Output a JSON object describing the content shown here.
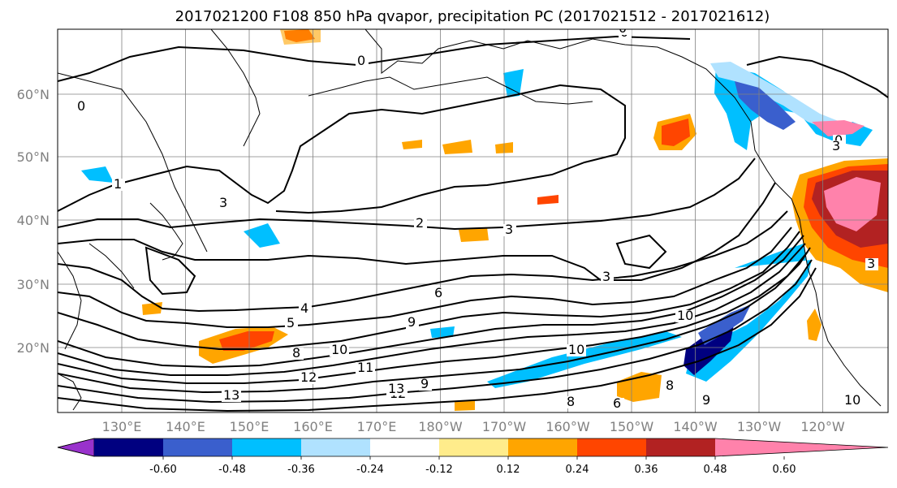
{
  "title": "2017021200 F108 850 hPa qvapor, precipitation PC (2017021512 - 2017021612)",
  "map": {
    "lat_labels": [
      {
        "text": "60°N",
        "lat": 60
      },
      {
        "text": "50°N",
        "lat": 50
      },
      {
        "text": "40°N",
        "lat": 40
      },
      {
        "text": "30°N",
        "lat": 30
      },
      {
        "text": "20°N",
        "lat": 20
      }
    ],
    "lon_labels": [
      "130°E",
      "140°E",
      "150°E",
      "160°E",
      "170°E",
      "180°W",
      "170°W",
      "160°W",
      "150°W",
      "140°W",
      "130°W",
      "120°W"
    ],
    "contour_labels": [
      "0",
      "0",
      "0",
      "0",
      "1",
      "2",
      "3",
      "3",
      "3",
      "4",
      "5",
      "6",
      "8",
      "8",
      "9",
      "9",
      "10",
      "10",
      "10",
      "11",
      "12",
      "12",
      "13",
      "13",
      "6",
      "8",
      "3",
      "10",
      "9",
      "0",
      "3"
    ]
  },
  "colorbar": {
    "colors": [
      "#9932cc",
      "#000080",
      "#3a5fcd",
      "#00bfff",
      "#b0e2ff",
      "#ffffff",
      "#ffec8b",
      "#ffa500",
      "#ff4500",
      "#b22222",
      "#ff82ab"
    ],
    "tick_labels": [
      "-0.60",
      "-0.48",
      "-0.36",
      "-0.24",
      "-0.12",
      "0.12",
      "0.24",
      "0.36",
      "0.48",
      "0.60"
    ]
  },
  "colors": {
    "contour": "#000000",
    "coast": "#000000",
    "grid": "#808080",
    "tick_label": "#808080"
  }
}
